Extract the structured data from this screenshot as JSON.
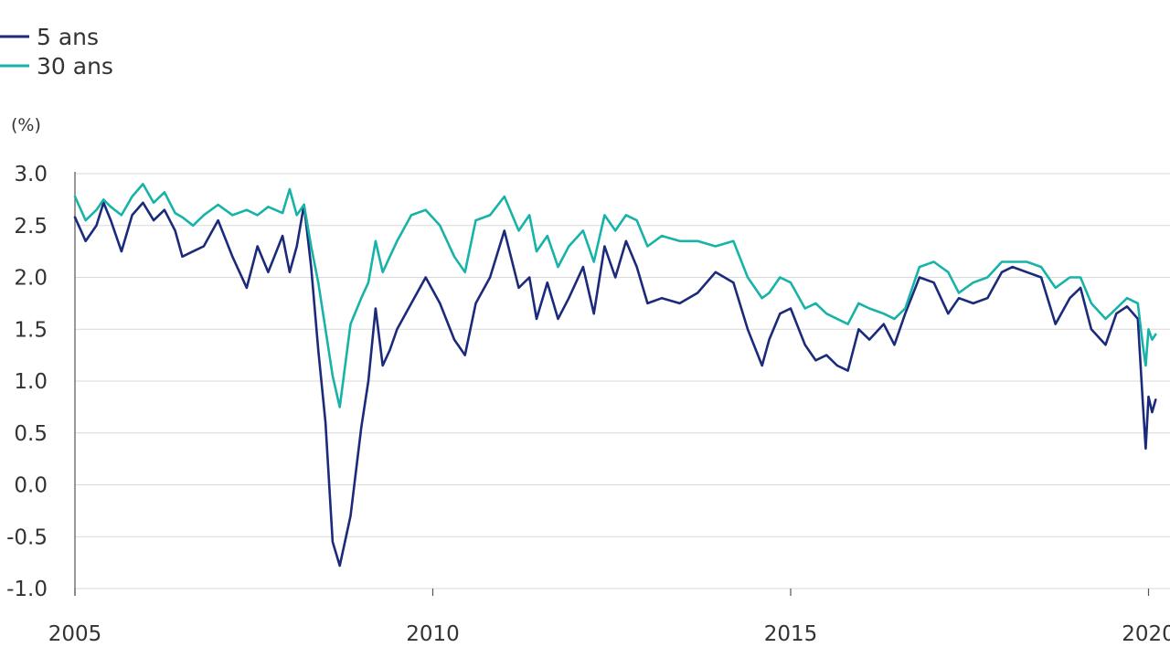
{
  "chart_data": {
    "type": "line",
    "title": "",
    "xlabel": "",
    "ylabel": "(%)",
    "xlim": [
      2005,
      2020.3
    ],
    "ylim": [
      -1.0,
      3.0
    ],
    "grid": true,
    "legend_position": "top-left",
    "y_ticks": [
      "3.0",
      "2.5",
      "2.0",
      "1.5",
      "1.0",
      "0.5",
      "0.0",
      "-0.5",
      "-1.0"
    ],
    "x_ticks": [
      "2005",
      "2010",
      "2015",
      "2020"
    ],
    "series": [
      {
        "name": "5 ans",
        "color": "#1b2a7a",
        "x": [
          2005.0,
          2005.15,
          2005.3,
          2005.4,
          2005.5,
          2005.65,
          2005.8,
          2005.95,
          2006.1,
          2006.25,
          2006.4,
          2006.5,
          2006.65,
          2006.8,
          2007.0,
          2007.2,
          2007.4,
          2007.55,
          2007.7,
          2007.9,
          2008.0,
          2008.1,
          2008.2,
          2008.3,
          2008.4,
          2008.5,
          2008.6,
          2008.7,
          2008.85,
          2009.0,
          2009.1,
          2009.2,
          2009.3,
          2009.4,
          2009.5,
          2009.7,
          2009.9,
          2010.1,
          2010.3,
          2010.45,
          2010.6,
          2010.8,
          2011.0,
          2011.2,
          2011.35,
          2011.45,
          2011.6,
          2011.75,
          2011.9,
          2012.1,
          2012.25,
          2012.4,
          2012.55,
          2012.7,
          2012.85,
          2013.0,
          2013.2,
          2013.45,
          2013.7,
          2013.95,
          2014.2,
          2014.4,
          2014.6,
          2014.7,
          2014.85,
          2015.0,
          2015.2,
          2015.35,
          2015.5,
          2015.65,
          2015.8,
          2015.95,
          2016.1,
          2016.3,
          2016.45,
          2016.6,
          2016.8,
          2017.0,
          2017.2,
          2017.35,
          2017.55,
          2017.75,
          2017.95,
          2018.1,
          2018.3,
          2018.5,
          2018.7,
          2018.9,
          2019.05,
          2019.2,
          2019.4,
          2019.55,
          2019.7,
          2019.85,
          2019.92,
          2019.96,
          2020.0,
          2020.05,
          2020.1
        ],
        "y": [
          2.58,
          2.35,
          2.5,
          2.72,
          2.55,
          2.25,
          2.6,
          2.72,
          2.55,
          2.65,
          2.45,
          2.2,
          2.25,
          2.3,
          2.55,
          2.2,
          1.9,
          2.3,
          2.05,
          2.4,
          2.05,
          2.3,
          2.7,
          2.1,
          1.3,
          0.6,
          -0.55,
          -0.78,
          -0.3,
          0.55,
          1.0,
          1.7,
          1.15,
          1.3,
          1.5,
          1.75,
          2.0,
          1.75,
          1.4,
          1.25,
          1.75,
          2.0,
          2.45,
          1.9,
          2.0,
          1.6,
          1.95,
          1.6,
          1.8,
          2.1,
          1.65,
          2.3,
          2.0,
          2.35,
          2.1,
          1.75,
          1.8,
          1.75,
          1.85,
          2.05,
          1.95,
          1.5,
          1.15,
          1.4,
          1.65,
          1.7,
          1.35,
          1.2,
          1.25,
          1.15,
          1.1,
          1.5,
          1.4,
          1.55,
          1.35,
          1.65,
          2.0,
          1.95,
          1.65,
          1.8,
          1.75,
          1.8,
          2.05,
          2.1,
          2.05,
          2.0,
          1.55,
          1.8,
          1.9,
          1.5,
          1.35,
          1.65,
          1.72,
          1.6,
          0.8,
          0.35,
          0.85,
          0.7,
          0.82
        ]
      },
      {
        "name": "30 ans",
        "color": "#17b3a8",
        "x": [
          2005.0,
          2005.15,
          2005.3,
          2005.4,
          2005.5,
          2005.65,
          2005.8,
          2005.95,
          2006.1,
          2006.25,
          2006.4,
          2006.5,
          2006.65,
          2006.8,
          2007.0,
          2007.2,
          2007.4,
          2007.55,
          2007.7,
          2007.9,
          2008.0,
          2008.1,
          2008.2,
          2008.3,
          2008.4,
          2008.5,
          2008.6,
          2008.7,
          2008.85,
          2009.0,
          2009.1,
          2009.2,
          2009.3,
          2009.4,
          2009.5,
          2009.7,
          2009.9,
          2010.1,
          2010.3,
          2010.45,
          2010.6,
          2010.8,
          2011.0,
          2011.2,
          2011.35,
          2011.45,
          2011.6,
          2011.75,
          2011.9,
          2012.1,
          2012.25,
          2012.4,
          2012.55,
          2012.7,
          2012.85,
          2013.0,
          2013.2,
          2013.45,
          2013.7,
          2013.95,
          2014.2,
          2014.4,
          2014.6,
          2014.7,
          2014.85,
          2015.0,
          2015.2,
          2015.35,
          2015.5,
          2015.65,
          2015.8,
          2015.95,
          2016.1,
          2016.3,
          2016.45,
          2016.6,
          2016.8,
          2017.0,
          2017.2,
          2017.35,
          2017.55,
          2017.75,
          2017.95,
          2018.1,
          2018.3,
          2018.5,
          2018.7,
          2018.9,
          2019.05,
          2019.2,
          2019.4,
          2019.55,
          2019.7,
          2019.85,
          2019.92,
          2019.96,
          2020.0,
          2020.05,
          2020.1
        ],
        "y": [
          2.78,
          2.55,
          2.65,
          2.75,
          2.68,
          2.6,
          2.78,
          2.9,
          2.72,
          2.82,
          2.62,
          2.58,
          2.5,
          2.6,
          2.7,
          2.6,
          2.65,
          2.6,
          2.68,
          2.62,
          2.85,
          2.6,
          2.7,
          2.3,
          1.95,
          1.5,
          1.05,
          0.75,
          1.55,
          1.8,
          1.95,
          2.35,
          2.05,
          2.2,
          2.35,
          2.6,
          2.65,
          2.5,
          2.2,
          2.05,
          2.55,
          2.6,
          2.78,
          2.45,
          2.6,
          2.25,
          2.4,
          2.1,
          2.3,
          2.45,
          2.15,
          2.6,
          2.45,
          2.6,
          2.55,
          2.3,
          2.4,
          2.35,
          2.35,
          2.3,
          2.35,
          2.0,
          1.8,
          1.85,
          2.0,
          1.95,
          1.7,
          1.75,
          1.65,
          1.6,
          1.55,
          1.75,
          1.7,
          1.65,
          1.6,
          1.7,
          2.1,
          2.15,
          2.05,
          1.85,
          1.95,
          2.0,
          2.15,
          2.15,
          2.15,
          2.1,
          1.9,
          2.0,
          2.0,
          1.75,
          1.6,
          1.7,
          1.8,
          1.75,
          1.35,
          1.15,
          1.5,
          1.4,
          1.45
        ]
      }
    ]
  }
}
